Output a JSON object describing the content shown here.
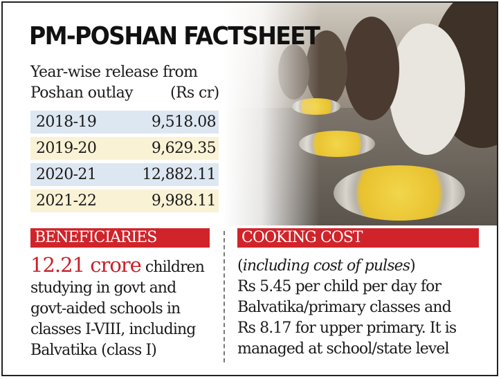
{
  "title": "PM-POSHAN FACTSHEET",
  "release": {
    "subtitle_line1": "Year-wise release from",
    "subtitle_line2": "Poshan outlay",
    "unit": "(Rs cr)",
    "rows": [
      {
        "year": "2018-19",
        "amount": "9,518.08"
      },
      {
        "year": "2019-20",
        "amount": "9,629.35"
      },
      {
        "year": "2020-21",
        "amount": "12,882.11"
      },
      {
        "year": "2021-22",
        "amount": "9,988.11"
      }
    ]
  },
  "beneficiaries": {
    "heading": "BENEFICIARIES",
    "highlight": "12.21 crore",
    "text_after_highlight": " children",
    "lines": [
      "studying in govt and",
      "govt-aided schools in",
      "classes I-VIII, including",
      "Balvatika (class I)"
    ]
  },
  "cooking_cost": {
    "heading": "COOKING COST",
    "paren_open": "(",
    "italic_note": "including cost of pulses",
    "paren_close": ")",
    "lines": [
      "Rs 5.45 per child per day for",
      "Balvatika/primary classes and",
      "Rs 8.17 for upper primary. It is",
      "managed at school/state level"
    ]
  },
  "colors": {
    "accent_red": "#d1232a",
    "row_blue": "#dde7f1",
    "row_yellow": "#faf2d5"
  }
}
